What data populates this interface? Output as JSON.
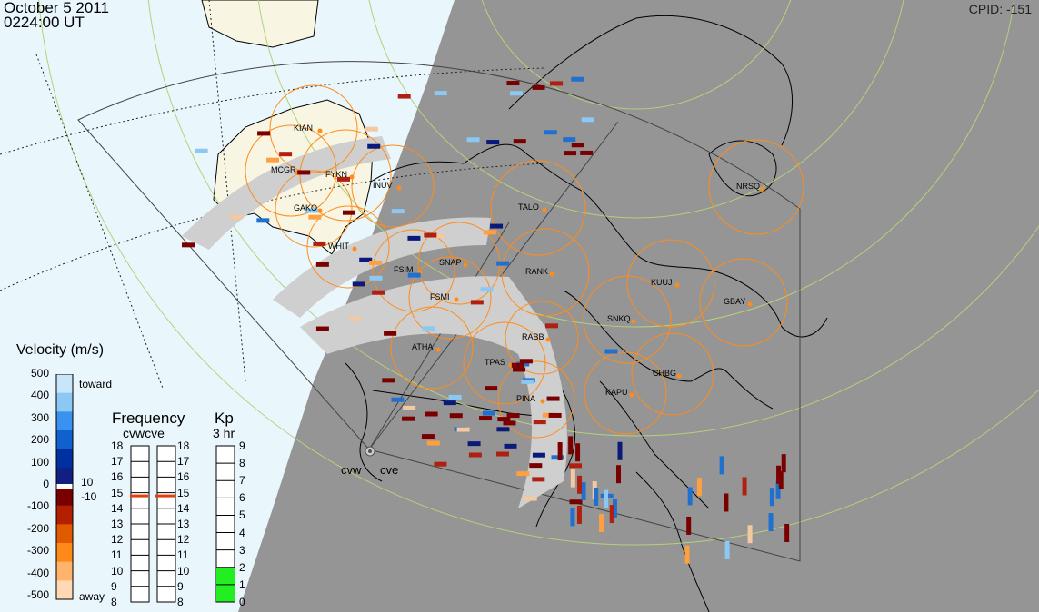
{
  "header": {
    "date": "October 5 2011",
    "time": "0224:00 UT",
    "cpid": "CPID:  -151"
  },
  "velocity_legend": {
    "title": "Velocity (m/s)",
    "ticks": [
      "500",
      "400",
      "300",
      "200",
      "100",
      "0",
      "-100",
      "-200",
      "-300",
      "-400",
      "-500"
    ],
    "toward_label": "toward",
    "away_label": "away",
    "pos_threshold": "10",
    "neg_threshold": "-10",
    "colors": [
      "#ffd9b3",
      "#ffb36b",
      "#ff8a1a",
      "#e05a00",
      "#b22000",
      "#7a0000",
      "#102080",
      "#0030a0",
      "#1060d0",
      "#3a92f0",
      "#8cc8f4",
      "#c8e6fa"
    ]
  },
  "frequency_legend": {
    "title": "Frequency",
    "subtitle": "cvwcve",
    "ticks": [
      "18",
      "17",
      "16",
      "15",
      "14",
      "13",
      "12",
      "11",
      "10",
      "9",
      "8"
    ],
    "cvw_value_mhz": 15,
    "cve_value_mhz": 15
  },
  "kp_legend": {
    "title": "Kp",
    "subtitle": "3 hr",
    "ticks": [
      "9",
      "8",
      "7",
      "6",
      "5",
      "4",
      "3",
      "2",
      "1",
      "0"
    ],
    "kp_value": 2
  },
  "radars": {
    "labels": [
      "cvw",
      "cve"
    ]
  },
  "stations": [
    {
      "name": "KIAN"
    },
    {
      "name": "MCGR"
    },
    {
      "name": "FYKN"
    },
    {
      "name": "INUV"
    },
    {
      "name": "GAKO"
    },
    {
      "name": "WHIT"
    },
    {
      "name": "FSIM"
    },
    {
      "name": "SNAP"
    },
    {
      "name": "FSMI"
    },
    {
      "name": "RANK"
    },
    {
      "name": "TALO"
    },
    {
      "name": "NRSQ"
    },
    {
      "name": "KUUJ"
    },
    {
      "name": "GBAY"
    },
    {
      "name": "SNKQ"
    },
    {
      "name": "ATHA"
    },
    {
      "name": "TPAS"
    },
    {
      "name": "RABB"
    },
    {
      "name": "CHBG"
    },
    {
      "name": "KAPU"
    },
    {
      "name": "PINA"
    }
  ],
  "colors": {
    "night": "#959595",
    "day": "#e9f6fb",
    "land_day": "#f8f5e2",
    "scatter_grey": "#cfcfcf",
    "station_circle": "#ff8c1a",
    "kp_fill": "#22ee22",
    "freq_marker": "#e04010"
  }
}
